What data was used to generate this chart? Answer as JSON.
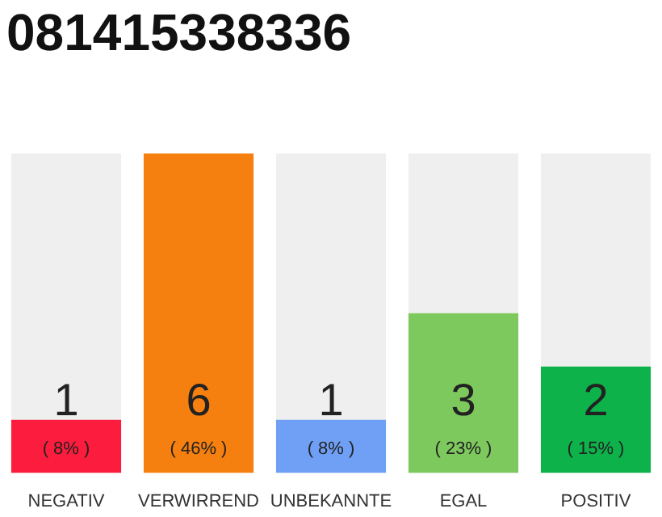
{
  "chart_data": {
    "type": "bar",
    "title": "081415338336",
    "categories": [
      "NEGATIV",
      "VERWIRREND",
      "UNBEKANNTE",
      "EGAL",
      "POSITIV"
    ],
    "values": [
      1,
      6,
      1,
      3,
      2
    ],
    "colors": [
      "#fc1c3d",
      "#f57f0f",
      "#6fa0f5",
      "#7ec95e",
      "#0db24a"
    ],
    "data_labels": true,
    "annotations": [
      "( 8% )",
      "( 46% )",
      "( 8% )",
      "( 23% )",
      "( 15% )"
    ]
  }
}
